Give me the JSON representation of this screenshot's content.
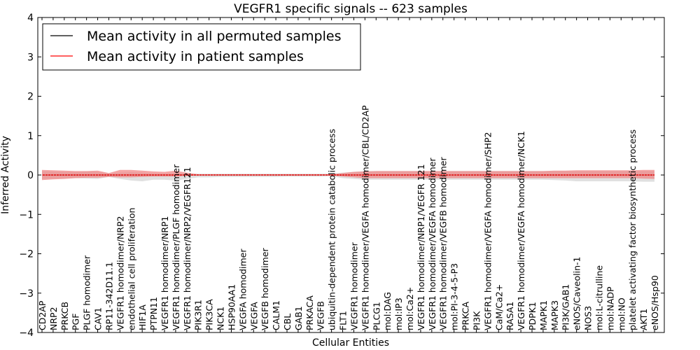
{
  "chart_data": {
    "type": "line",
    "title": "VEGFR1 specific signals -- 623 samples",
    "xlabel": "Cellular Entities",
    "ylabel": "Inferred Activity",
    "ylim": [
      -4,
      4
    ],
    "yticks": [
      "−4",
      "−3",
      "−2",
      "−1",
      "0",
      "1",
      "2",
      "3",
      "4"
    ],
    "grid": false,
    "legend_position": "top-left",
    "categories": [
      "CD2AP",
      "NRP2",
      "PRKCB",
      "PGF",
      "PLGF homodimer",
      "CAV1",
      "RP11-342D11.1",
      "VEGFR1 homodimer/NRP2",
      "endothelial cell proliferation",
      "HIF1A",
      "PTPN11",
      "VEGFR1 homodimer/NRP1",
      "VEGFR1 homodimer/PLGF homodimer",
      "VEGFR1 homodimer/NRP2/VEGFR121",
      "PIK3R1",
      "PIK3CA",
      "NCK1",
      "HSP90AA1",
      "VEGFA homodimer",
      "VEGFA",
      "VEGFB homodimer",
      "CALM1",
      "CBL",
      "GAB1",
      "PRKACA",
      "VEGFB",
      "ubiquitin-dependent protein catabolic process",
      "FLT1",
      "VEGFR1 homodimer",
      "VEGFR1 homodimer/VEGFA homodimer/CBL/CD2AP",
      "PLCG1",
      "mol:DAG",
      "mol:IP3",
      "mol:Ca2+",
      "VEGFR1 homodimer/NRP1/VEGFR 121",
      "VEGFR1 homodimer/VEGFA homodimer",
      "VEGFR1 homodimer/VEGFB homodimer",
      "mol:PI-3-4-5-P3",
      "PRKCA",
      "PI3K",
      "VEGFR1 homodimer/VEGFA homodimer/SHP2",
      "CaM/Ca2+",
      "RASA1",
      "VEGFR1 homodimer/VEGFA homodimer/NCK1",
      "PDPK1",
      "MAPK1",
      "MAPK3",
      "PI3K/GAB1",
      "eNOS/Caveolin-1",
      "NOS3",
      "mol:L-citrulline",
      "mol:NADP",
      "mol:NO",
      "platelet activating factor biosynthetic process",
      "AKT1",
      "eNOS/Hsp90"
    ],
    "series": [
      {
        "name": "Mean activity in all permuted samples",
        "color": "#000000",
        "band_color": "#d3d3d3",
        "values": [
          0.0,
          0.0,
          0.0,
          0.0,
          0.0,
          0.0,
          0.0,
          0.0,
          0.0,
          0.0,
          0.0,
          0.0,
          0.0,
          0.0,
          0.0,
          0.0,
          0.0,
          0.0,
          0.0,
          0.0,
          0.0,
          0.0,
          0.0,
          0.0,
          0.0,
          0.0,
          0.0,
          0.0,
          0.0,
          0.0,
          0.0,
          0.0,
          0.0,
          0.0,
          0.0,
          0.0,
          0.0,
          0.0,
          0.0,
          0.0,
          0.0,
          0.0,
          0.0,
          0.0,
          0.0,
          0.0,
          0.0,
          0.0,
          0.0,
          0.0,
          0.0,
          0.0,
          0.0,
          0.0,
          0.0,
          0.0
        ],
        "band_lower": [
          -0.1,
          -0.09,
          -0.08,
          -0.08,
          -0.09,
          -0.1,
          -0.05,
          -0.1,
          -0.14,
          -0.16,
          -0.12,
          -0.12,
          -0.14,
          -0.1,
          -0.06,
          -0.06,
          -0.05,
          -0.05,
          -0.05,
          -0.05,
          -0.05,
          -0.05,
          -0.04,
          -0.04,
          -0.04,
          -0.04,
          -0.03,
          -0.08,
          -0.1,
          -0.12,
          -0.12,
          -0.12,
          -0.12,
          -0.12,
          -0.12,
          -0.12,
          -0.12,
          -0.12,
          -0.12,
          -0.12,
          -0.12,
          -0.12,
          -0.12,
          -0.12,
          -0.12,
          -0.12,
          -0.13,
          -0.14,
          -0.16,
          -0.16,
          -0.16,
          -0.16,
          -0.16,
          -0.16,
          -0.17,
          -0.17
        ],
        "band_upper": [
          0.1,
          0.09,
          0.08,
          0.08,
          0.09,
          0.08,
          0.04,
          0.06,
          0.07,
          0.06,
          0.04,
          0.04,
          0.04,
          0.04,
          0.03,
          0.03,
          0.03,
          0.03,
          0.03,
          0.03,
          0.03,
          0.03,
          0.03,
          0.03,
          0.03,
          0.03,
          0.03,
          0.06,
          0.08,
          0.1,
          0.1,
          0.1,
          0.1,
          0.1,
          0.1,
          0.1,
          0.1,
          0.1,
          0.1,
          0.1,
          0.1,
          0.1,
          0.1,
          0.1,
          0.1,
          0.1,
          0.1,
          0.1,
          0.1,
          0.1,
          0.1,
          0.1,
          0.1,
          0.1,
          0.1,
          0.1
        ]
      },
      {
        "name": "Mean activity in patient samples",
        "color": "#ff0000",
        "band_color": "#f08080",
        "values": [
          0.0,
          0.0,
          0.0,
          0.0,
          0.0,
          0.0,
          0.0,
          0.0,
          0.0,
          0.0,
          0.0,
          0.0,
          0.0,
          0.0,
          0.0,
          0.0,
          0.0,
          0.0,
          0.0,
          0.0,
          0.0,
          0.0,
          0.0,
          0.0,
          0.0,
          0.0,
          0.0,
          0.0,
          0.0,
          0.0,
          0.0,
          0.0,
          0.0,
          0.0,
          0.0,
          0.0,
          0.0,
          0.0,
          0.0,
          0.0,
          0.0,
          0.0,
          0.0,
          0.0,
          0.0,
          0.0,
          0.0,
          0.0,
          0.0,
          0.0,
          0.0,
          0.0,
          0.0,
          0.0,
          0.0,
          0.0
        ],
        "band_lower": [
          -0.13,
          -0.11,
          -0.1,
          -0.08,
          -0.07,
          -0.07,
          -0.05,
          -0.06,
          -0.06,
          -0.05,
          -0.04,
          -0.04,
          -0.04,
          -0.02,
          -0.01,
          -0.01,
          -0.01,
          -0.01,
          -0.01,
          -0.01,
          -0.01,
          -0.01,
          -0.01,
          -0.01,
          -0.01,
          -0.01,
          -0.01,
          -0.04,
          -0.06,
          -0.08,
          -0.08,
          -0.08,
          -0.08,
          -0.08,
          -0.08,
          -0.08,
          -0.08,
          -0.08,
          -0.08,
          -0.08,
          -0.08,
          -0.08,
          -0.08,
          -0.08,
          -0.08,
          -0.08,
          -0.08,
          -0.08,
          -0.08,
          -0.08,
          -0.08,
          -0.08,
          -0.08,
          -0.08,
          -0.09,
          -0.1
        ],
        "band_upper": [
          0.13,
          0.12,
          0.11,
          0.1,
          0.1,
          0.11,
          0.05,
          0.13,
          0.13,
          0.11,
          0.09,
          0.08,
          0.11,
          0.06,
          0.02,
          0.02,
          0.02,
          0.02,
          0.02,
          0.02,
          0.02,
          0.02,
          0.02,
          0.02,
          0.02,
          0.02,
          0.02,
          0.05,
          0.08,
          0.09,
          0.1,
          0.1,
          0.1,
          0.1,
          0.1,
          0.1,
          0.1,
          0.1,
          0.1,
          0.1,
          0.1,
          0.1,
          0.1,
          0.1,
          0.1,
          0.1,
          0.11,
          0.11,
          0.12,
          0.12,
          0.12,
          0.12,
          0.12,
          0.12,
          0.13,
          0.13
        ]
      }
    ]
  }
}
